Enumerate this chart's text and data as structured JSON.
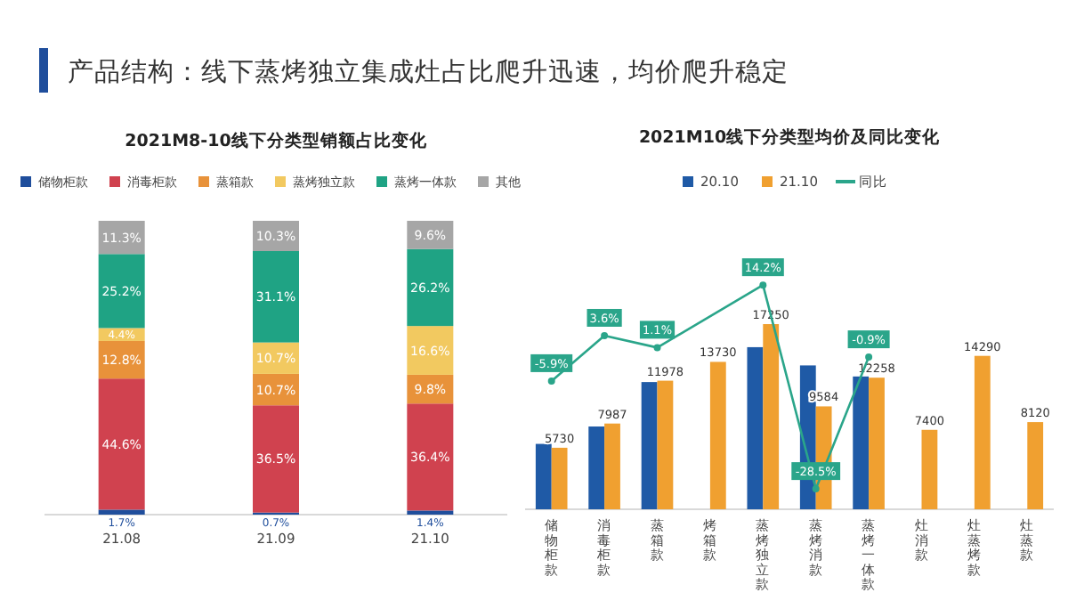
{
  "chart_data": [
    {
      "type": "bar",
      "stacked": true,
      "title": "2021M8-10线下分类型销额占比变化",
      "annotations": [
        "产品结构：线下蒸烤独立集成灶占比爬升迅速，均价爬升稳定"
      ],
      "categories": [
        "21.08",
        "21.09",
        "21.10"
      ],
      "legend": "top",
      "series": [
        {
          "name": "储物柜款",
          "color": "#1f4e9c",
          "values": [
            1.7,
            0.7,
            1.4
          ],
          "value_labels": [
            "1.7%",
            "0.7%",
            "1.4%"
          ]
        },
        {
          "name": "消毒柜款",
          "color": "#d0424f",
          "values": [
            44.6,
            36.5,
            36.4
          ],
          "value_labels": [
            "44.6%",
            "36.5%",
            "36.4%"
          ]
        },
        {
          "name": "蒸箱款",
          "color": "#e8923a",
          "values": [
            12.8,
            10.7,
            9.8
          ],
          "value_labels": [
            "12.8%",
            "10.7%",
            "9.8%"
          ]
        },
        {
          "name": "蒸烤独立款",
          "color": "#f2c960",
          "values": [
            4.4,
            10.7,
            16.6
          ],
          "value_labels": [
            "4.4%",
            "10.7%",
            "16.6%"
          ]
        },
        {
          "name": "蒸烤一体款",
          "color": "#1fa384",
          "values": [
            25.2,
            31.1,
            26.2
          ],
          "value_labels": [
            "25.2%",
            "31.1%",
            "26.2%"
          ]
        },
        {
          "name": "其他",
          "color": "#a6a6a6",
          "values": [
            11.3,
            10.3,
            9.6
          ],
          "value_labels": [
            "11.3%",
            "10.3%",
            "9.6%"
          ]
        }
      ]
    },
    {
      "type": "bar",
      "title": "2021M10线下分类型均价及同比变化",
      "categories": [
        "储物柜款",
        "消毒柜款",
        "蒸箱款",
        "烤箱款",
        "蒸烤独立款",
        "蒸烤消款",
        "蒸烤一体款",
        "灶消款",
        "灶蒸烤款",
        "灶蒸款"
      ],
      "legend": "top",
      "series": [
        {
          "name": "20.10",
          "color": "#1f5aa6",
          "values": [
            6090,
            7710,
            11850,
            null,
            15100,
            13400,
            12370,
            null,
            null,
            null
          ]
        },
        {
          "name": "21.10",
          "color": "#f0a030",
          "values": [
            5730,
            7987,
            11978,
            13730,
            17250,
            9584,
            12258,
            7400,
            14290,
            8120
          ],
          "value_labels": [
            "5730",
            "7987",
            "11978",
            "13730",
            "17250",
            "9584",
            "12258",
            "7400",
            "14290",
            "8120"
          ]
        },
        {
          "name": "同比",
          "type": "line",
          "axis": "y2",
          "marker": "circle",
          "color": "#2aa58a",
          "values": [
            -5.9,
            3.6,
            1.1,
            null,
            14.2,
            -28.5,
            -0.9,
            null,
            null,
            null
          ],
          "value_labels": [
            "-5.9%",
            "3.6%",
            "1.1%",
            null,
            "14.2%",
            "-28.5%",
            "-0.9%",
            null,
            null,
            null
          ]
        }
      ]
    }
  ]
}
